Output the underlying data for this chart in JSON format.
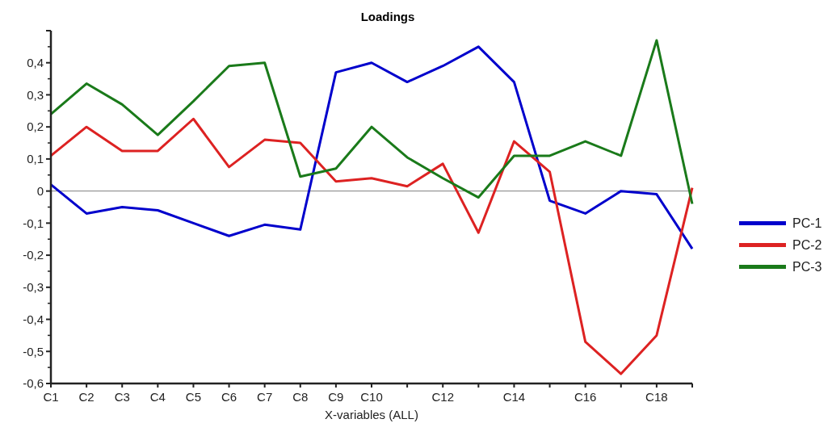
{
  "chart_data": {
    "type": "line",
    "title": "Loadings",
    "xlabel": "X-variables (ALL)",
    "categories": [
      "C1",
      "C2",
      "C3",
      "C4",
      "C5",
      "C6",
      "C7",
      "C8",
      "C9",
      "C10",
      null,
      "C12",
      null,
      "C14",
      null,
      "C16",
      null,
      "C18",
      null
    ],
    "series": [
      {
        "name": "PC-1",
        "color": "#0000cc",
        "values": [
          0.02,
          -0.07,
          -0.05,
          -0.06,
          -0.1,
          -0.14,
          -0.105,
          -0.12,
          0.37,
          0.4,
          0.34,
          0.39,
          0.45,
          0.34,
          -0.03,
          -0.07,
          0.0,
          -0.01,
          -0.18
        ]
      },
      {
        "name": "PC-2",
        "color": "#dd2222",
        "values": [
          0.11,
          0.2,
          0.125,
          0.125,
          0.225,
          0.075,
          0.16,
          0.15,
          0.03,
          0.04,
          0.015,
          0.085,
          -0.13,
          0.155,
          0.06,
          -0.47,
          -0.57,
          -0.45,
          0.01
        ]
      },
      {
        "name": "PC-3",
        "color": "#1a7a1a",
        "values": [
          0.24,
          0.335,
          0.27,
          0.175,
          0.28,
          0.39,
          0.4,
          0.045,
          0.07,
          0.2,
          0.105,
          0.04,
          -0.02,
          0.11,
          0.11,
          0.155,
          0.11,
          0.47,
          -0.04
        ]
      }
    ],
    "ylim": [
      -0.6,
      0.5
    ],
    "yticks": [
      {
        "value": -0.6,
        "label": "-0,6"
      },
      {
        "value": -0.5,
        "label": "-0,5"
      },
      {
        "value": -0.4,
        "label": "-0,4"
      },
      {
        "value": -0.3,
        "label": "-0,3"
      },
      {
        "value": -0.2,
        "label": "-0,2"
      },
      {
        "value": -0.1,
        "label": "-0,1"
      },
      {
        "value": 0,
        "label": "0"
      },
      {
        "value": 0.1,
        "label": "0,1"
      },
      {
        "value": 0.2,
        "label": "0,2"
      },
      {
        "value": 0.3,
        "label": "0,3"
      },
      {
        "value": 0.4,
        "label": "0,4"
      },
      {
        "value": 0.5,
        "label": null
      }
    ],
    "ref_lines": [
      {
        "axis": "y",
        "value": 0,
        "color": "#808080"
      }
    ],
    "legend": "right",
    "grid": false,
    "marker": "none",
    "line_style": "solid"
  }
}
